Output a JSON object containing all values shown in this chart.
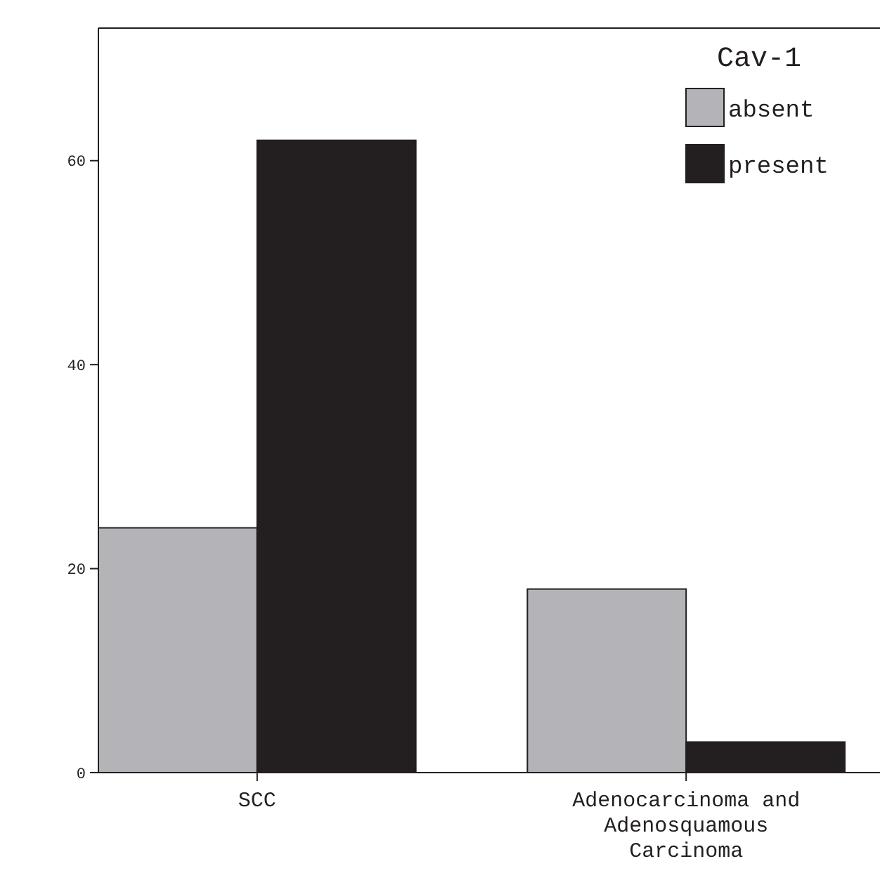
{
  "chart_data": {
    "type": "bar",
    "categories": [
      "SCC",
      "Adenocarcinoma and Adenosquamous Carcinoma"
    ],
    "series": [
      {
        "name": "absent",
        "color": "#b4b4b8",
        "values": [
          24,
          18
        ]
      },
      {
        "name": "present",
        "color": "#231f20",
        "values": [
          62,
          3
        ]
      }
    ],
    "legend_title": "Cav-1",
    "legend": "top right",
    "ylim": [
      0,
      73
    ],
    "yticks": [
      0,
      20,
      40,
      60
    ]
  }
}
